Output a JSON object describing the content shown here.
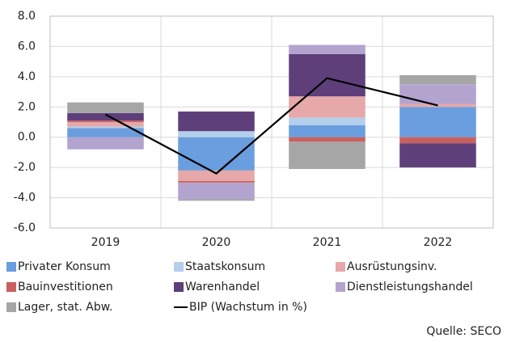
{
  "chart_data": {
    "type": "stacked_bar",
    "categories": [
      "2019",
      "2020",
      "2021",
      "2022"
    ],
    "series": [
      {
        "name": "Privater Konsum",
        "color": "#6a9ede",
        "values": [
          0.6,
          -2.2,
          0.8,
          2.0
        ]
      },
      {
        "name": "Staatskonsum",
        "color": "#b4cfec",
        "values": [
          0.1,
          0.4,
          0.5,
          0.0
        ]
      },
      {
        "name": "Ausrüstungsinv.",
        "color": "#e6a8a8",
        "values": [
          0.3,
          -0.7,
          1.4,
          0.2
        ]
      },
      {
        "name": "Bauinvestitionen",
        "color": "#c9605e",
        "values": [
          0.1,
          -0.1,
          -0.3,
          -0.4
        ]
      },
      {
        "name": "Warenhandel",
        "color": "#5e3f7a",
        "values": [
          0.5,
          1.3,
          2.8,
          -1.6
        ]
      },
      {
        "name": "Dienstleistungshandel",
        "color": "#b3a3cf",
        "values": [
          -0.8,
          -1.1,
          0.6,
          1.3
        ]
      },
      {
        "name": "Lager, stat. Abw.",
        "color": "#a6a6a6",
        "values": [
          0.7,
          -0.1,
          -1.8,
          0.6
        ]
      }
    ],
    "line": {
      "name": "BIP (Wachstum in %)",
      "color": "#000000",
      "values": [
        1.5,
        -2.4,
        3.9,
        2.1
      ]
    },
    "ylim": [
      -6,
      8
    ],
    "yticks": [
      {
        "value": -6,
        "label": "-6.0"
      },
      {
        "value": -4,
        "label": "-4.0"
      },
      {
        "value": -2,
        "label": "-2.0"
      },
      {
        "value": 0,
        "label": "0.0"
      },
      {
        "value": 2,
        "label": "2.0"
      },
      {
        "value": 4,
        "label": "4.0"
      },
      {
        "value": 6,
        "label": "6.0"
      },
      {
        "value": 8,
        "label": "8.0"
      }
    ],
    "grid": true,
    "source": "Quelle: SECO"
  }
}
